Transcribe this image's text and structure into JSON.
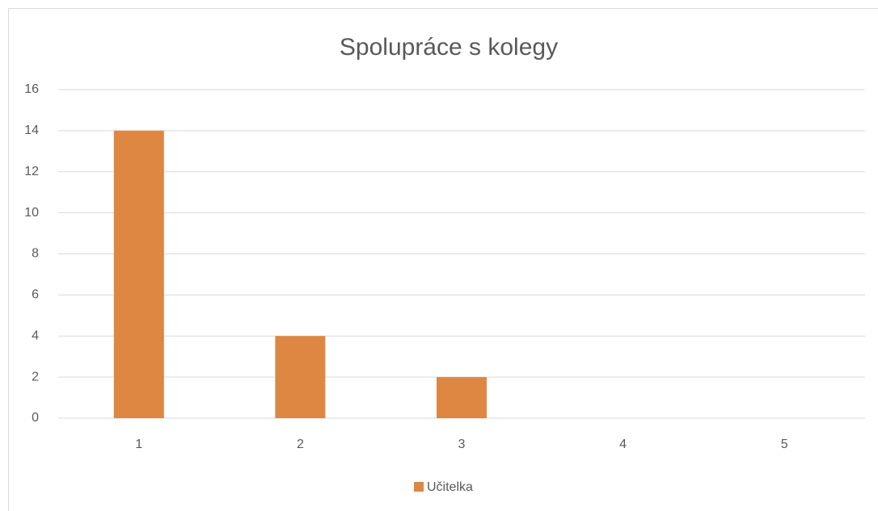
{
  "chart_data": {
    "type": "bar",
    "title": "Spolupráce s kolegy",
    "categories": [
      "1",
      "2",
      "3",
      "4",
      "5"
    ],
    "series": [
      {
        "name": "Učitelka",
        "color": "#dd8743",
        "values": [
          14,
          4,
          2,
          0,
          0
        ]
      }
    ],
    "ylim": [
      0,
      16
    ],
    "yticks": [
      0,
      2,
      4,
      6,
      8,
      10,
      12,
      14,
      16
    ],
    "grid": true,
    "legend": "bottom"
  }
}
